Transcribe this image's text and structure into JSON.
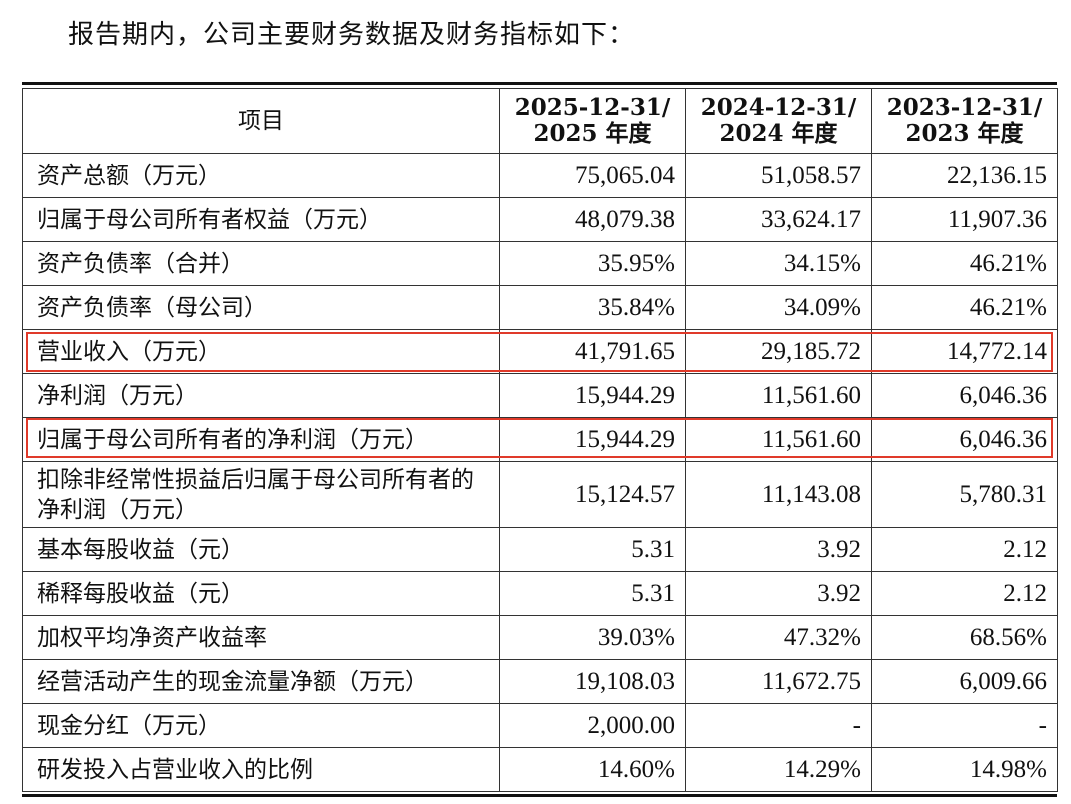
{
  "intro": "报告期内，公司主要财务数据及财务指标如下：",
  "table": {
    "header": {
      "item": "项目",
      "cols": [
        {
          "line1": "2025-12-31/",
          "line2": "2025 年度"
        },
        {
          "line1": "2024-12-31/",
          "line2": "2024 年度"
        },
        {
          "line1": "2023-12-31/",
          "line2": "2023 年度"
        }
      ]
    },
    "rows": [
      {
        "label": "资产总额（万元）",
        "values": [
          "75,065.04",
          "51,058.57",
          "22,136.15"
        ],
        "highlight": false
      },
      {
        "label": "归属于母公司所有者权益（万元）",
        "values": [
          "48,079.38",
          "33,624.17",
          "11,907.36"
        ],
        "highlight": false
      },
      {
        "label": "资产负债率（合并）",
        "values": [
          "35.95%",
          "34.15%",
          "46.21%"
        ],
        "highlight": false
      },
      {
        "label": "资产负债率（母公司）",
        "values": [
          "35.84%",
          "34.09%",
          "46.21%"
        ],
        "highlight": false
      },
      {
        "label": "营业收入（万元）",
        "values": [
          "41,791.65",
          "29,185.72",
          "14,772.14"
        ],
        "highlight": true
      },
      {
        "label": "净利润（万元）",
        "values": [
          "15,944.29",
          "11,561.60",
          "6,046.36"
        ],
        "highlight": false
      },
      {
        "label": "归属于母公司所有者的净利润（万元）",
        "values": [
          "15,944.29",
          "11,561.60",
          "6,046.36"
        ],
        "highlight": true
      },
      {
        "label": "扣除非经常性损益后归属于母公司所有者的净利润（万元）",
        "values": [
          "15,124.57",
          "11,143.08",
          "5,780.31"
        ],
        "highlight": false,
        "double": true
      },
      {
        "label": "基本每股收益（元）",
        "values": [
          "5.31",
          "3.92",
          "2.12"
        ],
        "highlight": false
      },
      {
        "label": "稀释每股收益（元）",
        "values": [
          "5.31",
          "3.92",
          "2.12"
        ],
        "highlight": false
      },
      {
        "label": "加权平均净资产收益率",
        "values": [
          "39.03%",
          "47.32%",
          "68.56%"
        ],
        "highlight": false
      },
      {
        "label": "经营活动产生的现金流量净额（万元）",
        "values": [
          "19,108.03",
          "11,672.75",
          "6,009.66"
        ],
        "highlight": false
      },
      {
        "label": "现金分红（万元）",
        "values": [
          "2,000.00",
          "-",
          "-"
        ],
        "highlight": false
      },
      {
        "label": "研发投入占营业收入的比例",
        "values": [
          "14.60%",
          "14.29%",
          "14.98%"
        ],
        "highlight": false
      }
    ]
  },
  "colors": {
    "highlight_border": "#e03a2a",
    "text": "#111111",
    "rule": "#111111"
  }
}
